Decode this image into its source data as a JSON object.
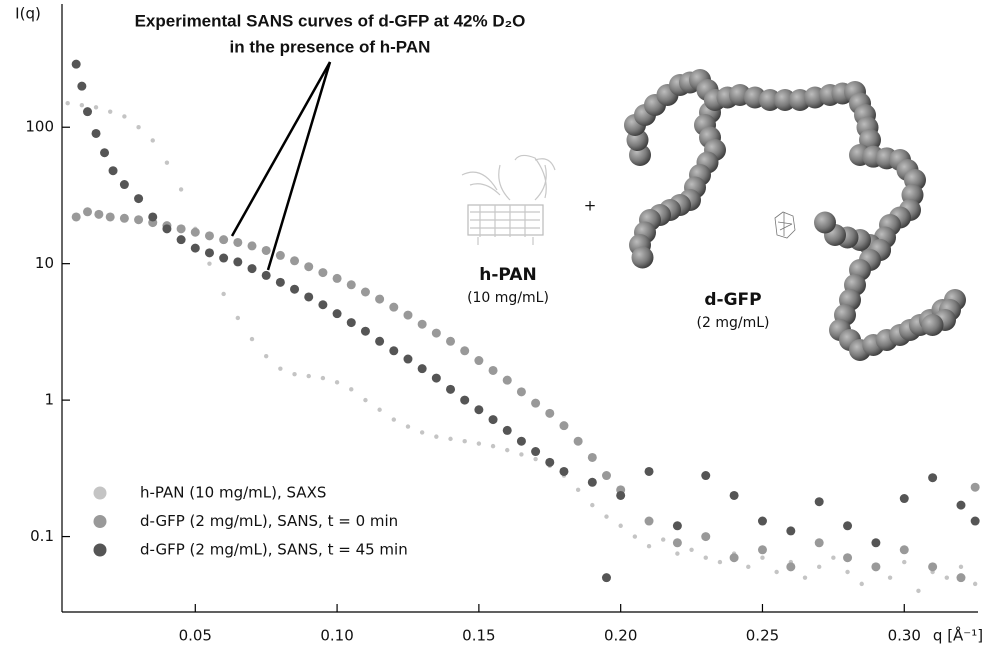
{
  "chart_data": {
    "type": "scatter",
    "annotation": [
      "Experimental SANS curves of d-GFP at 42% D₂O",
      "in the presence of h-PAN"
    ],
    "ylabel": "I(q)",
    "xlabel": "q [Å⁻¹]",
    "inset_labels": {
      "plus": "+",
      "hpan": "h-PAN",
      "hpan_conc": "(10 mg/mL)",
      "dgfp": "d-GFP",
      "dgfp_conc": "(2 mg/mL)"
    },
    "yscale": "log",
    "xlim": [
      0.003,
      0.326
    ],
    "ylim": [
      0.028,
      800
    ],
    "xticks": [
      0.05,
      {
        "value": 0.1,
        "label": "0.10"
      },
      0.15,
      {
        "value": 0.2,
        "label": "0.20"
      },
      0.25,
      {
        "value": 0.3,
        "label": "0.30"
      }
    ],
    "yticks": [
      0.1,
      1,
      10,
      100
    ],
    "legend": "lower left",
    "series": [
      {
        "name": "h-PAN (10 mg/mL), SAXS",
        "color": "#c4c4c4",
        "x": [
          0.005,
          0.01,
          0.015,
          0.02,
          0.025,
          0.03,
          0.035,
          0.04,
          0.045,
          0.05,
          0.055,
          0.06,
          0.065,
          0.07,
          0.075,
          0.08,
          0.085,
          0.09,
          0.095,
          0.1,
          0.105,
          0.11,
          0.115,
          0.12,
          0.125,
          0.13,
          0.135,
          0.14,
          0.145,
          0.15,
          0.155,
          0.16,
          0.165,
          0.17,
          0.175,
          0.18,
          0.185,
          0.19,
          0.195,
          0.2,
          0.205,
          0.21,
          0.215,
          0.22,
          0.225,
          0.23,
          0.235,
          0.24,
          0.245,
          0.25,
          0.255,
          0.26,
          0.265,
          0.27,
          0.275,
          0.28,
          0.285,
          0.29,
          0.295,
          0.3,
          0.305,
          0.31,
          0.315,
          0.32,
          0.325
        ],
        "values": [
          150,
          145,
          140,
          130,
          120,
          100,
          80,
          55,
          35,
          18,
          10,
          6,
          4,
          2.8,
          2.1,
          1.7,
          1.55,
          1.5,
          1.45,
          1.35,
          1.2,
          1.0,
          0.85,
          0.72,
          0.64,
          0.58,
          0.54,
          0.52,
          0.5,
          0.48,
          0.46,
          0.43,
          0.4,
          0.37,
          0.33,
          0.28,
          0.22,
          0.17,
          0.14,
          0.12,
          0.1,
          0.085,
          0.095,
          0.075,
          0.08,
          0.07,
          0.065,
          0.075,
          0.06,
          0.07,
          0.055,
          0.065,
          0.05,
          0.06,
          0.07,
          0.055,
          0.045,
          0.06,
          0.05,
          0.065,
          0.04,
          0.055,
          0.05,
          0.06,
          0.045
        ]
      },
      {
        "name": "d-GFP (2 mg/mL), SANS, t = 0 min",
        "color": "#999999",
        "x": [
          0.008,
          0.012,
          0.016,
          0.02,
          0.025,
          0.03,
          0.035,
          0.04,
          0.045,
          0.05,
          0.055,
          0.06,
          0.065,
          0.07,
          0.075,
          0.08,
          0.085,
          0.09,
          0.095,
          0.1,
          0.105,
          0.11,
          0.115,
          0.12,
          0.125,
          0.13,
          0.135,
          0.14,
          0.145,
          0.15,
          0.155,
          0.16,
          0.165,
          0.17,
          0.175,
          0.18,
          0.185,
          0.19,
          0.195,
          0.2,
          0.21,
          0.22,
          0.23,
          0.24,
          0.25,
          0.26,
          0.27,
          0.28,
          0.29,
          0.3,
          0.31,
          0.32,
          0.325
        ],
        "values": [
          22,
          24,
          23,
          22,
          21.5,
          21,
          20,
          19,
          18,
          17,
          16,
          15,
          14.3,
          13.5,
          12.5,
          11.5,
          10.5,
          9.5,
          8.6,
          7.8,
          7,
          6.2,
          5.5,
          4.8,
          4.2,
          3.6,
          3.1,
          2.7,
          2.3,
          1.95,
          1.65,
          1.4,
          1.15,
          0.95,
          0.8,
          0.65,
          0.5,
          0.38,
          0.28,
          0.22,
          0.13,
          0.09,
          0.1,
          0.07,
          0.08,
          0.06,
          0.09,
          0.07,
          0.06,
          0.08,
          0.06,
          0.05,
          0.23
        ]
      },
      {
        "name": "d-GFP (2 mg/mL), SANS, t = 45 min",
        "color": "#555555",
        "x": [
          0.008,
          0.01,
          0.012,
          0.015,
          0.018,
          0.021,
          0.025,
          0.03,
          0.035,
          0.04,
          0.045,
          0.05,
          0.055,
          0.06,
          0.065,
          0.07,
          0.075,
          0.08,
          0.085,
          0.09,
          0.095,
          0.1,
          0.105,
          0.11,
          0.115,
          0.12,
          0.125,
          0.13,
          0.135,
          0.14,
          0.145,
          0.15,
          0.155,
          0.16,
          0.165,
          0.17,
          0.175,
          0.18,
          0.19,
          0.195,
          0.2,
          0.21,
          0.22,
          0.23,
          0.24,
          0.25,
          0.26,
          0.27,
          0.28,
          0.29,
          0.3,
          0.31,
          0.32,
          0.325
        ],
        "values": [
          290,
          200,
          130,
          90,
          65,
          48,
          38,
          30,
          22,
          18,
          15,
          13,
          12,
          11,
          10.3,
          9.2,
          8.2,
          7.3,
          6.5,
          5.7,
          5,
          4.3,
          3.7,
          3.2,
          2.7,
          2.3,
          2,
          1.7,
          1.45,
          1.2,
          1.0,
          0.85,
          0.72,
          0.6,
          0.5,
          0.42,
          0.35,
          0.3,
          0.25,
          0.05,
          0.2,
          0.3,
          0.12,
          0.28,
          0.2,
          0.13,
          0.11,
          0.18,
          0.12,
          0.09,
          0.19,
          0.27,
          0.17,
          0.13
        ]
      }
    ]
  }
}
